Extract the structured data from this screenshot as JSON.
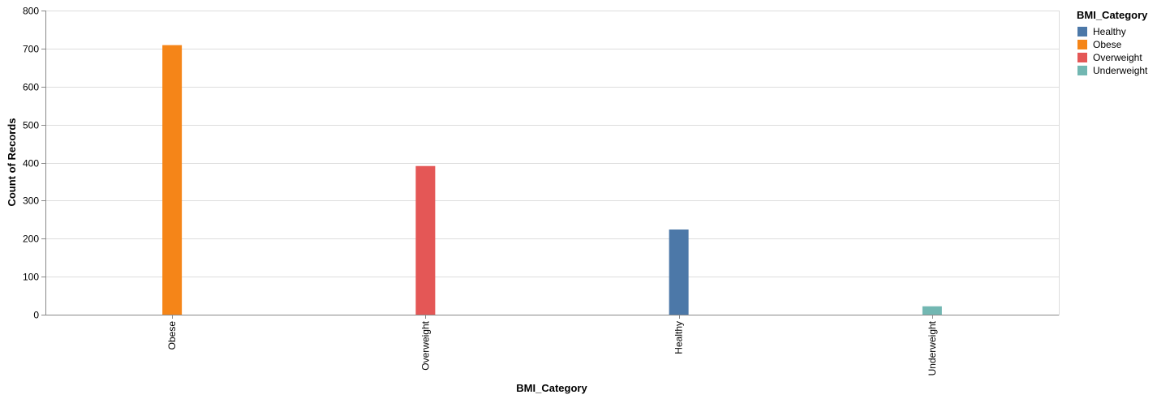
{
  "chart_data": {
    "type": "bar",
    "categories": [
      "Obese",
      "Overweight",
      "Healthy",
      "Underweight"
    ],
    "values": [
      709,
      391,
      224,
      22
    ],
    "xlabel": "BMI_Category",
    "ylabel": "Count of Records",
    "ylim": [
      0,
      800
    ],
    "yticks": [
      0,
      100,
      200,
      300,
      400,
      500,
      600,
      700,
      800
    ],
    "grid": true,
    "legend": {
      "title": "BMI_Category",
      "placement": "right",
      "entries": [
        {
          "label": "Healthy",
          "color": "#4c78a8"
        },
        {
          "label": "Obese",
          "color": "#f58518"
        },
        {
          "label": "Overweight",
          "color": "#e45756"
        },
        {
          "label": "Underweight",
          "color": "#72b7b2"
        }
      ]
    }
  }
}
